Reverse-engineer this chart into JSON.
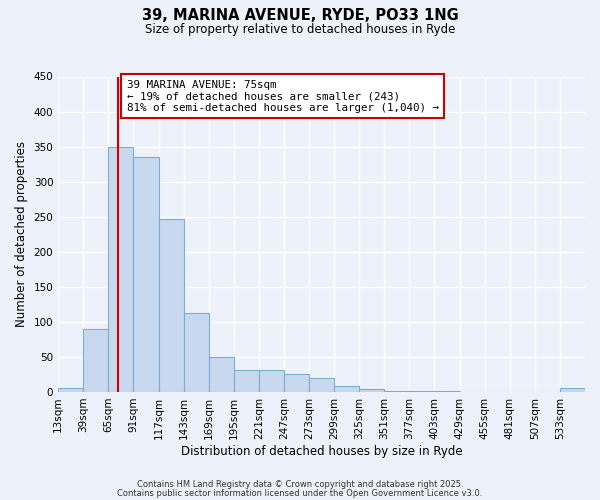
{
  "title": "39, MARINA AVENUE, RYDE, PO33 1NG",
  "subtitle": "Size of property relative to detached houses in Ryde",
  "xlabel": "Distribution of detached houses by size in Ryde",
  "ylabel": "Number of detached properties",
  "bar_color": "#c8d9ef",
  "bar_edge_color": "#7aadd4",
  "background_color": "#edf2fa",
  "grid_color": "white",
  "annotation_box_color": "white",
  "annotation_box_edge": "#cc0000",
  "vline_color": "#cc0000",
  "vline_x": 75,
  "categories": [
    "13sqm",
    "39sqm",
    "65sqm",
    "91sqm",
    "117sqm",
    "143sqm",
    "169sqm",
    "195sqm",
    "221sqm",
    "247sqm",
    "273sqm",
    "299sqm",
    "325sqm",
    "351sqm",
    "377sqm",
    "403sqm",
    "429sqm",
    "455sqm",
    "481sqm",
    "507sqm",
    "533sqm"
  ],
  "bin_edges": [
    13,
    39,
    65,
    91,
    117,
    143,
    169,
    195,
    221,
    247,
    273,
    299,
    325,
    351,
    377,
    403,
    429,
    455,
    481,
    507,
    533,
    559
  ],
  "values": [
    5,
    90,
    350,
    335,
    247,
    113,
    50,
    31,
    31,
    25,
    20,
    9,
    4,
    2,
    1,
    1,
    0,
    0,
    0,
    0,
    5
  ],
  "ylim": [
    0,
    450
  ],
  "yticks": [
    0,
    50,
    100,
    150,
    200,
    250,
    300,
    350,
    400,
    450
  ],
  "annotation_line1": "39 MARINA AVENUE: 75sqm",
  "annotation_line2": "← 19% of detached houses are smaller (243)",
  "annotation_line3": "81% of semi-detached houses are larger (1,040) →",
  "footnote1": "Contains HM Land Registry data © Crown copyright and database right 2025.",
  "footnote2": "Contains public sector information licensed under the Open Government Licence v3.0."
}
